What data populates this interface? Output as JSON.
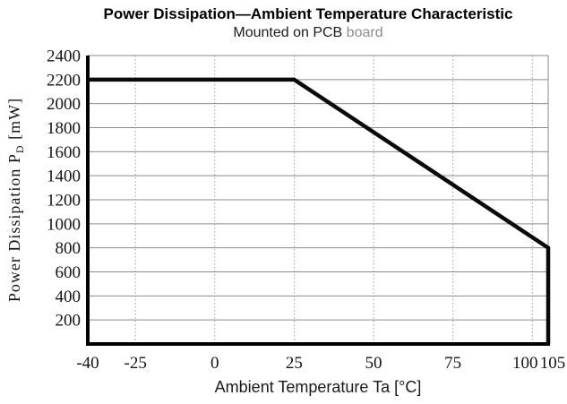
{
  "figure": {
    "title": "Power Dissipation—Ambient Temperature Characteristic",
    "subtitle_main": "Mounted on PCB",
    "subtitle_note": " board"
  },
  "chart_data": {
    "type": "line",
    "title": "Power Dissipation—Ambient Temperature Characteristic",
    "subtitle": "Mounted on PCB board",
    "xlabel": "Ambient Temperature Ta [°C]",
    "ylabel": "Power Dissipation PD [mW]",
    "ylabel_parts": {
      "pre": "Power Dissipation P",
      "sub": "D",
      "post": " [mW]"
    },
    "xlim": [
      -40,
      105
    ],
    "ylim": [
      0,
      2400
    ],
    "x_ticks": [
      {
        "v": -40,
        "label": "-40"
      },
      {
        "v": -25,
        "label": "-25"
      },
      {
        "v": 0,
        "label": "0"
      },
      {
        "v": 25,
        "label": "25"
      },
      {
        "v": 50,
        "label": "50"
      },
      {
        "v": 75,
        "label": "75"
      },
      {
        "v": 100,
        "label": "100",
        "dx": -8
      },
      {
        "v": 105,
        "label": "105",
        "dx": 5
      }
    ],
    "y_ticks": [
      200,
      400,
      600,
      800,
      1000,
      1200,
      1400,
      1600,
      1800,
      2000,
      2200,
      2400
    ],
    "grid": {
      "horizontal": "solid",
      "vertical": "dotted",
      "legend": "none"
    },
    "series": [
      {
        "points": [
          [
            -40,
            2200
          ],
          [
            25,
            2200
          ],
          [
            105,
            800
          ],
          [
            105,
            0
          ]
        ],
        "color": "#0a0a0a",
        "stroke_width": 4.5
      }
    ],
    "colors": {
      "grid_h": "#8b8b8b",
      "grid_v": "#9a9a9a",
      "axis": "#000000",
      "tick_text": "#141414",
      "subtitle_note": "#8d8d8d"
    }
  }
}
